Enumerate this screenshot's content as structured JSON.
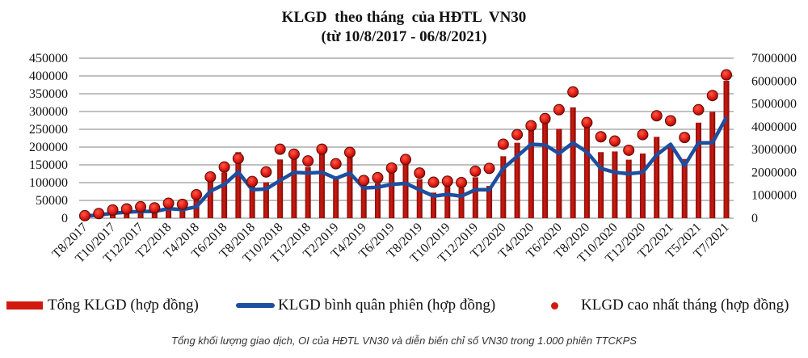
{
  "colors": {
    "bars": "#d01a10",
    "line": "#1d4e9f",
    "dots": "#e01a12",
    "grid": "#9a9a9a"
  },
  "caption": "Tổng khối lượng giao dịch, OI của HĐTL VN30 và diễn biến chỉ số VN30 trong 1.000 phiên TTCKPS",
  "chart_data": {
    "type": "bar+line+scatter",
    "title": "KLGD  theo tháng  của HĐTL  VN30",
    "subtitle": "(từ 10/8/2017 - 06/8/2021)",
    "grid": true,
    "legend_position": "bottom",
    "y_left": {
      "min": 0,
      "max": 450000,
      "ticks": [
        "0",
        "50000",
        "100000",
        "150000",
        "200000",
        "250000",
        "300000",
        "350000",
        "400000",
        "450000"
      ]
    },
    "y_right": {
      "min": 0,
      "max": 7000000,
      "ticks": [
        "0",
        "1000000",
        "2000000",
        "3000000",
        "4000000",
        "5000000",
        "6000000",
        "7000000"
      ]
    },
    "x_tick_labels": [
      "T8/2017",
      "T10/2017",
      "T12/2017",
      "T2/2018",
      "T4/2018",
      "T6/2018",
      "T8/2018",
      "T10/2018",
      "T12/2018",
      "T2/2019",
      "T4/2019",
      "T6/2019",
      "T8/2019",
      "T10/2019",
      "T12/2019",
      "T2/2020",
      "T4/2020",
      "T6/2020",
      "T8/2020",
      "T10/2020",
      "T12/2020",
      "T2/2021",
      "T5/2021",
      "T7/2021"
    ],
    "series": [
      {
        "name": "Tổng KLGD (hợp đồng)",
        "kind": "bar",
        "axis": "right",
        "values": [
          50000,
          100000,
          200000,
          250000,
          300000,
          300000,
          470000,
          470000,
          800000,
          1650000,
          2000000,
          2890000,
          1410000,
          1570000,
          2570000,
          2710000,
          2240000,
          2950000,
          1710000,
          2710000,
          1530000,
          1530000,
          2120000,
          2360000,
          1710000,
          1120000,
          1410000,
          1320000,
          1790000,
          1410000,
          2710000,
          3300000,
          3890000,
          4130000,
          3910000,
          4850000,
          4010000,
          2890000,
          2920000,
          2560000,
          2830000,
          3560000,
          3180000,
          2590000,
          4180000,
          4650000,
          6010000
        ]
      },
      {
        "name": "KLGD bình quân phiên (hợp đồng)",
        "kind": "line",
        "axis": "left",
        "values": [
          6000,
          9000,
          14000,
          17000,
          19000,
          19000,
          27000,
          24000,
          32000,
          76000,
          95000,
          130000,
          80000,
          82000,
          106000,
          129000,
          127000,
          129000,
          112000,
          127000,
          85000,
          87000,
          95000,
          98000,
          80000,
          62000,
          67000,
          62000,
          80000,
          80000,
          140000,
          174000,
          208000,
          206000,
          182000,
          212000,
          186000,
          140000,
          129000,
          125000,
          129000,
          178000,
          208000,
          148000,
          212000,
          212000,
          284000
        ]
      },
      {
        "name": "KLGD cao nhất tháng (hợp đồng)",
        "kind": "scatter",
        "axis": "left",
        "values": [
          7000,
          13000,
          23000,
          26000,
          32000,
          29000,
          42000,
          39000,
          66000,
          116000,
          144000,
          168000,
          103000,
          130000,
          194000,
          180000,
          161000,
          194000,
          153000,
          185000,
          106000,
          114000,
          141000,
          165000,
          127000,
          101000,
          104000,
          100000,
          132000,
          140000,
          208000,
          235000,
          260000,
          280000,
          305000,
          355000,
          269000,
          229000,
          217000,
          191000,
          235000,
          288000,
          274000,
          227000,
          305000,
          345000,
          403000
        ]
      }
    ]
  }
}
